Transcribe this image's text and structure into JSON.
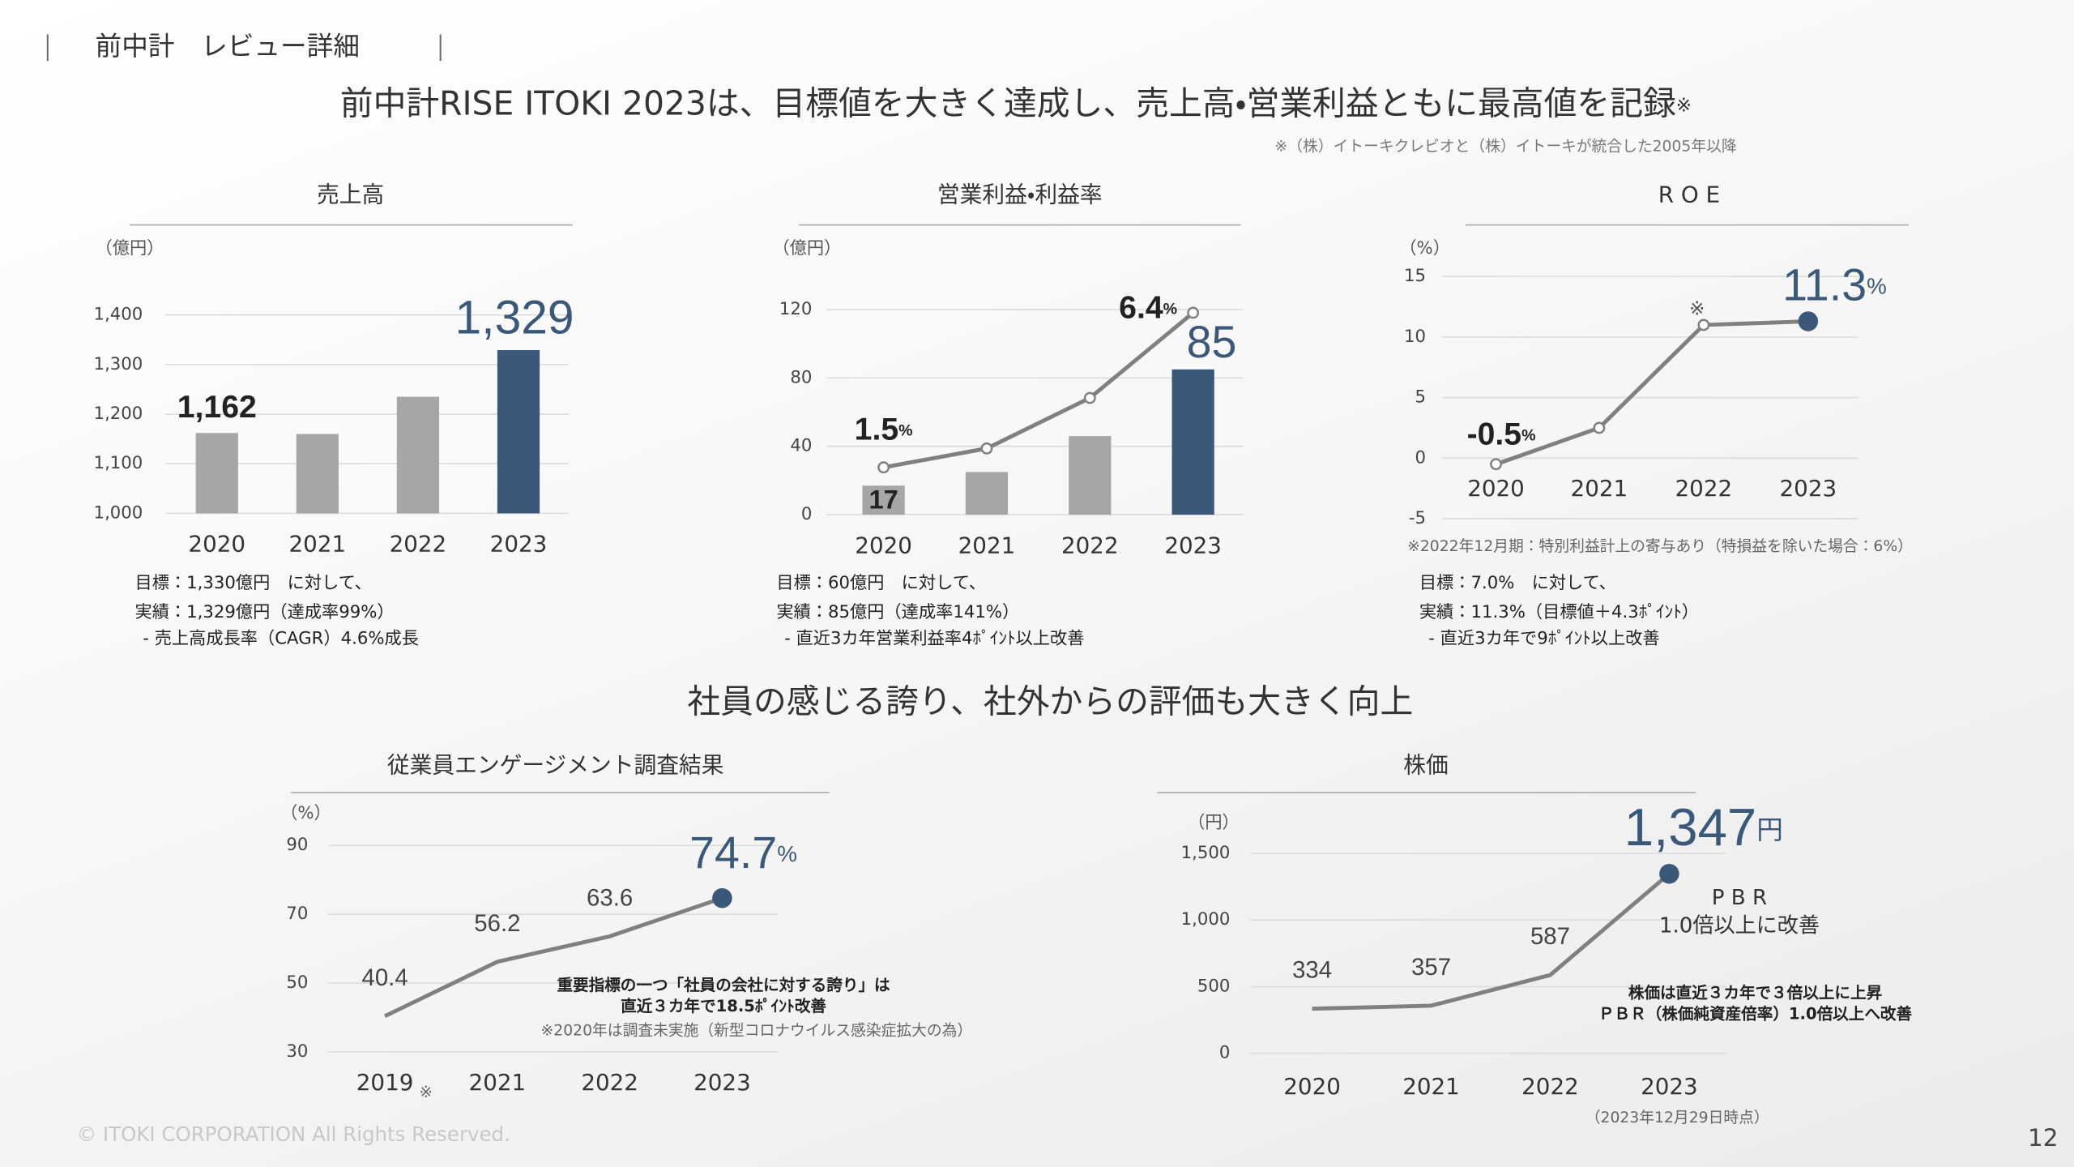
{
  "page": {
    "header": "前中計　レビュー詳細",
    "headline": "前中計RISE ITOKI 2023は、目標値を大きく達成し、売上高・営業利益ともに最高値を記録",
    "headline_mark": "※",
    "headline_note": "※（株）イトーキクレビオと（株）イトーキが統合した2005年以降",
    "headline2": "社員の感じる誇り、社外からの評価も大きく向上",
    "copyright": "© ITOKI CORPORATION All Rights Reserved.",
    "page_number": 12
  },
  "chart_data": [
    {
      "type": "bar",
      "title": "売上高",
      "unit_label": "（億円）",
      "categories": [
        "2020",
        "2021",
        "2022",
        "2023"
      ],
      "values": [
        1162,
        1160,
        1235,
        1329
      ],
      "value_labels": [
        "1,162",
        null,
        null,
        "1,329"
      ],
      "colors": [
        "#a6a6a6",
        "#a6a6a6",
        "#a6a6a6",
        "#3b5878"
      ],
      "ylim": [
        1000,
        1400
      ],
      "yticks": [
        {
          "value": 1000,
          "label": "1,000"
        },
        {
          "value": 1100,
          "label": "1,100"
        },
        {
          "value": 1200,
          "label": "1,200"
        },
        {
          "value": 1300,
          "label": "1,300"
        },
        {
          "value": 1400,
          "label": "1,400"
        }
      ],
      "grid": true,
      "notes": [
        "目標：1,330億円　に対して、",
        "実績：1,329億円（達成率99%）",
        "- 売上高成長率（CAGR）4.6%成長"
      ]
    },
    {
      "type": "combo",
      "title": "営業利益・利益率",
      "unit_label": "（億円）",
      "categories": [
        "2020",
        "2021",
        "2022",
        "2023"
      ],
      "series": [
        {
          "values": [
            17,
            25,
            46,
            85
          ],
          "value_labels": [
            "17",
            null,
            null,
            "85"
          ],
          "colors": [
            "#a6a6a6",
            "#a6a6a6",
            "#a6a6a6",
            "#3b5878"
          ]
        },
        {
          "type": "line",
          "axis": "y2",
          "values": [
            1.5,
            2.1,
            3.7,
            6.4
          ],
          "value_labels": [
            "1.5%",
            null,
            null,
            "6.4%"
          ],
          "color": "#808080"
        }
      ],
      "ylim": [
        0,
        120
      ],
      "yticks": [
        0,
        40,
        80,
        120
      ],
      "y2lim": [
        0,
        6.5
      ],
      "grid": true,
      "notes": [
        "目標：60億円　に対して、",
        "実績：85億円（達成率141%）",
        "- 直近3カ年営業利益率4ﾎﾟｲﾝﾄ以上改善"
      ]
    },
    {
      "type": "line",
      "title": "R O E",
      "unit_label": "（%）",
      "categories": [
        "2020",
        "2021",
        "2022",
        "2023"
      ],
      "values": [
        -0.5,
        2.5,
        11.0,
        11.3
      ],
      "value_labels": [
        "-0.5%",
        null,
        null,
        "11.3%"
      ],
      "color": "#808080",
      "marker_color": "#3b5878",
      "ylim": [
        -5,
        15
      ],
      "yticks": [
        -5,
        0,
        5,
        10,
        15
      ],
      "grid": true,
      "annotation": "※",
      "footnote": "※2022年12月期：特別利益計上の寄与あり（特損益を除いた場合：6%）",
      "notes": [
        "目標：7.0%　に対して、",
        "実績：11.3%（目標値＋4.3ﾎﾟｲﾝﾄ）",
        "- 直近3カ年で9ﾎﾟｲﾝﾄ以上改善"
      ]
    },
    {
      "type": "line",
      "title": "従業員エンゲージメント調査結果",
      "unit_label": "（%）",
      "categories": [
        "2019",
        "2021",
        "2022",
        "2023"
      ],
      "x_note": "※",
      "values": [
        40.4,
        56.2,
        63.6,
        74.7
      ],
      "value_labels": [
        "40.4",
        "56.2",
        "63.6",
        "74.7%"
      ],
      "color": "#808080",
      "marker_color": "#3b5878",
      "ylim": [
        30,
        90
      ],
      "yticks": [
        30,
        50,
        70,
        90
      ],
      "grid": true,
      "annotations": [
        "重要指標の一つ「社員の会社に対する誇り」は",
        "直近３カ年で18.5ﾎﾟｲﾝﾄ改善"
      ],
      "footnote": "※2020年は調査未実施（新型コロナウイルス感染症拡大の為）"
    },
    {
      "type": "line",
      "title": "株価",
      "unit_label": "（円）",
      "categories": [
        "2020",
        "2021",
        "2022",
        "2023"
      ],
      "values": [
        334,
        357,
        587,
        1347
      ],
      "value_labels": [
        "334",
        "357",
        "587",
        "1,347円"
      ],
      "color": "#808080",
      "marker_color": "#3b5878",
      "ylim": [
        0,
        1500
      ],
      "yticks": [
        0,
        500,
        {
          "value": 1000,
          "label": "1,000"
        },
        {
          "value": 1500,
          "label": "1,500"
        }
      ],
      "grid": true,
      "callout": [
        "P B R",
        "1.0倍以上に改善"
      ],
      "annotations": [
        "株価は直近３カ年で３倍以上に上昇",
        "ＰＢＲ（株価純資産倍率）1.0倍以上へ改善"
      ],
      "footnote": "（2023年12月29日時点）"
    }
  ]
}
